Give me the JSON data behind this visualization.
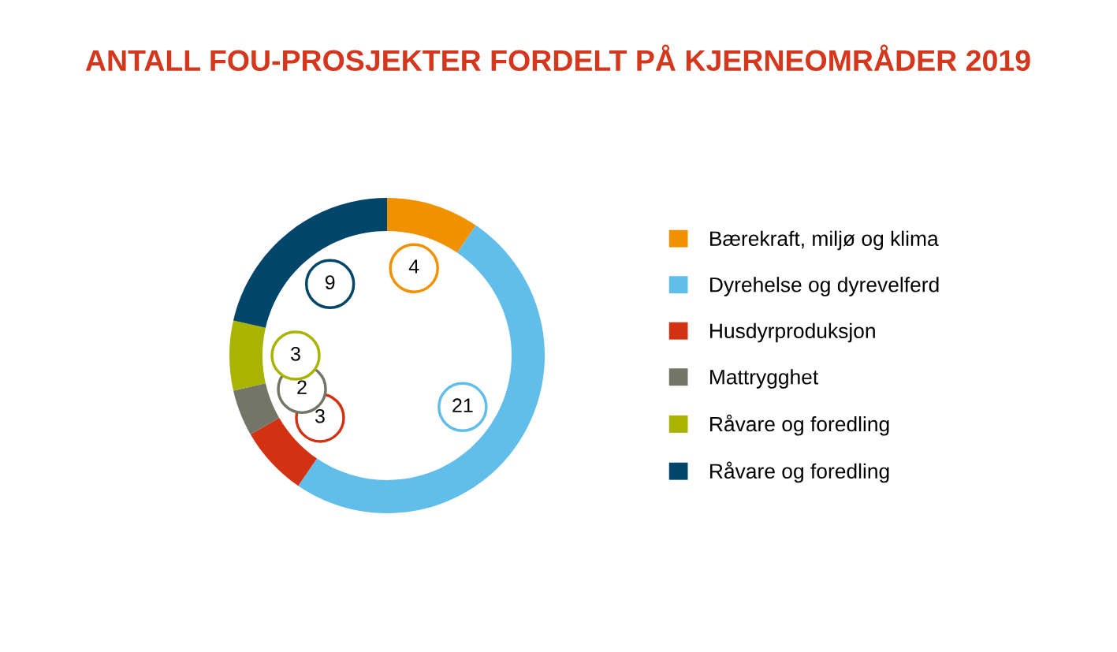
{
  "chart_data": {
    "type": "donut",
    "title": "ANTALL FOU-PROSJEKTER FORDELT PÅ KJERNEOMRÅDER 2019",
    "categories": [
      "Bærekraft, miljø og klima",
      "Dyrehelse og dyrevelferd",
      "Husdyrproduksjon",
      "Mattrygghet",
      "Råvare og foredling",
      "Råvare og foredling"
    ],
    "values": [
      4,
      21,
      3,
      2,
      3,
      9
    ],
    "colors": [
      "#f29100",
      "#61bdea",
      "#d23212",
      "#737567",
      "#a9b400",
      "#00466b"
    ],
    "data_labels": true,
    "legend": "right"
  }
}
